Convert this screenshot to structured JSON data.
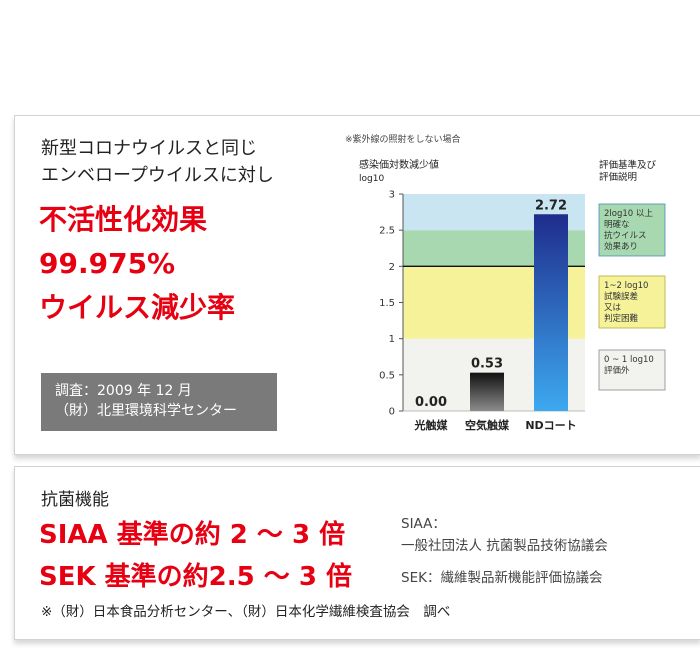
{
  "intro": {
    "line1": "新型コロナウイルスと同じ",
    "line2": "エンベロープウイルスに対し"
  },
  "headline": {
    "line1": "不活性化効果",
    "line2": "99.975%",
    "line3": "ウイルス減少率"
  },
  "survey": {
    "line1": "調査：2009 年 12 月",
    "line2": "（財）北里環境科学センター"
  },
  "chart_data": {
    "type": "bar",
    "note": "※紫外線の照射をしない場合",
    "ylabel": "感染価対数減少値",
    "yunit": "log10",
    "ylim": [
      0,
      3
    ],
    "yticks": [
      "0",
      "0.5",
      "1",
      "1.5",
      "2",
      "2.5",
      "3"
    ],
    "categories": [
      "光触媒",
      "空気触媒",
      "NDコート"
    ],
    "values": [
      0.0,
      0.53,
      2.72
    ],
    "value_labels": [
      "0.00",
      "0.53",
      "2.72"
    ],
    "threshold": 2,
    "legend_title_line1": "評価基準及び",
    "legend_title_line2": "評価説明",
    "bands": [
      {
        "from": 0,
        "to": 1,
        "color": "#f2f2ee",
        "label_lines": [
          "0 ~ 1 log10",
          "評価外"
        ]
      },
      {
        "from": 1,
        "to": 2,
        "color": "#f5f29a",
        "label_lines": [
          "1~2 log10",
          "試験誤差",
          "又は",
          "判定困難"
        ]
      },
      {
        "from": 2,
        "to": 2.5,
        "color": "#a8d8b0",
        "label_lines": [
          "2log10 以上",
          "明確な",
          "抗ウイルス",
          "効果あり"
        ]
      },
      {
        "from": 2.5,
        "to": 3,
        "color": "#c9e5f2",
        "label_lines": []
      }
    ],
    "colors": {
      "bar_nd_top": "#1f2c8c",
      "bar_nd_bottom": "#3da9f0",
      "bar_air_top": "#111111",
      "bar_air_bottom": "#8c8c8c"
    }
  },
  "antibacterial": {
    "label": "抗菌機能",
    "siaa_headline": "SIAA 基準の約 2 ～ 3 倍",
    "sek_headline": "SEK 基準の約2.5 ～ 3 倍",
    "siaa_note_line1": "SIAA：",
    "siaa_note_line2": "一般社団法人 抗菌製品技術協議会",
    "sek_note": "SEK：繊維製品新機能評価協議会",
    "footnote": "※（財）日本食品分析センター、（財）日本化学繊維検査協会　調べ"
  }
}
